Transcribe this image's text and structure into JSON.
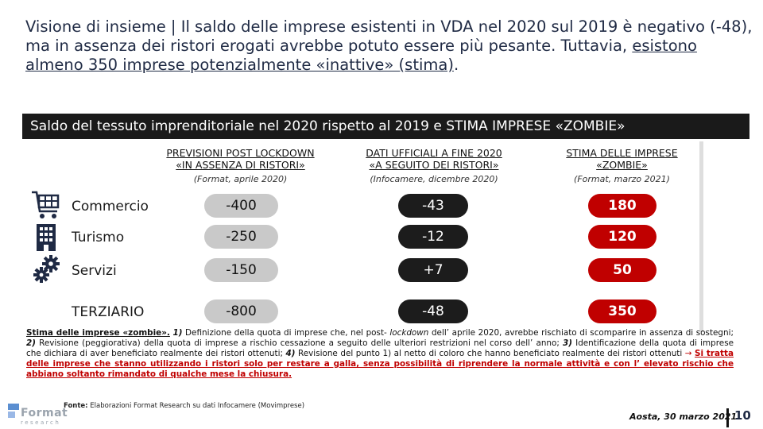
{
  "title": {
    "part1": "Visione di insieme | Il saldo delle imprese esistenti in VDA nel 2020 sul 2019 è negativo (-48), ma in assenza dei ristori erogati avrebbe potuto essere più pesante. Tuttavia, ",
    "underlined": "esistono almeno 350 imprese potenzialmente «inattive» (stima)",
    "end": "."
  },
  "banner": "Saldo del tessuto imprenditoriale nel 2020 rispetto al 2019 e STIMA IMPRESE «ZOMBIE»",
  "columns": [
    {
      "heading": "PREVISIONI POST LOCKDOWN «IN ASSENZA DI RISTORI»",
      "sub": "(Format, aprile 2020)"
    },
    {
      "heading": "DATI UFFICIALI A FINE 2020 «A SEGUITO DEI RISTORI»",
      "sub": "(Infocamere, dicembre 2020)"
    },
    {
      "heading": "STIMA DELLE IMPRESE «ZOMBIE»",
      "sub": "(Format, marzo 2021)"
    }
  ],
  "rows": [
    {
      "label": "Commercio",
      "icon": "shopping-cart-icon",
      "prev": "-400",
      "ufficiali": "-43",
      "zombie": "180"
    },
    {
      "label": "Turismo",
      "icon": "hotel-building-icon",
      "prev": "-250",
      "ufficiali": "-12",
      "zombie": "120"
    },
    {
      "label": "Servizi",
      "icon": "gears-icon",
      "prev": "-150",
      "ufficiali": "+7",
      "zombie": "50"
    },
    {
      "label": "TERZIARIO",
      "icon": "",
      "prev": "-800",
      "ufficiali": "-48",
      "zombie": "350"
    }
  ],
  "note": {
    "lead": "Stima delle imprese «zombie».",
    "n1": "1)",
    "t1a": " Definizione della quota di imprese che, nel post- ",
    "t1i": "lockdown",
    "t1b": " dell’ aprile 2020, avrebbe rischiato di scomparire in assenza di sostegni; ",
    "n2": "2)",
    "t2": " Revisione (peggiorativa) della quota di imprese a rischio cessazione a seguito delle ulteriori restrizioni nel corso dell’ anno; ",
    "n3": "3)",
    "t3": " Identificazione della quota di imprese che dichiara di aver beneficiato realmente dei ristori ottenuti; ",
    "n4": "4)",
    "t4": " Revisione del punto 1) al netto di coloro che hanno beneficiato realmente dei ristori ottenuti ",
    "arrow": "→",
    "conclusion": "Si tratta delle imprese che stanno utilizzando i ristori solo per restare a galla, senza possibilità di riprendere la normale attività e con l’ elevato rischio che abbiano soltanto rimandato di qualche mese la chiusura."
  },
  "source": {
    "label": "Fonte:",
    "text": " Elaborazioni Format Research su dati Infocamere (Movimprese)"
  },
  "logo": {
    "word": "Format",
    "sub": "research"
  },
  "footer": {
    "date": "Aosta, 30 marzo 2021",
    "page": "10"
  },
  "colors": {
    "red": "#c00000",
    "dark": "#1c1c1c",
    "grey": "#c9c9c9",
    "title": "#1f2a44"
  }
}
